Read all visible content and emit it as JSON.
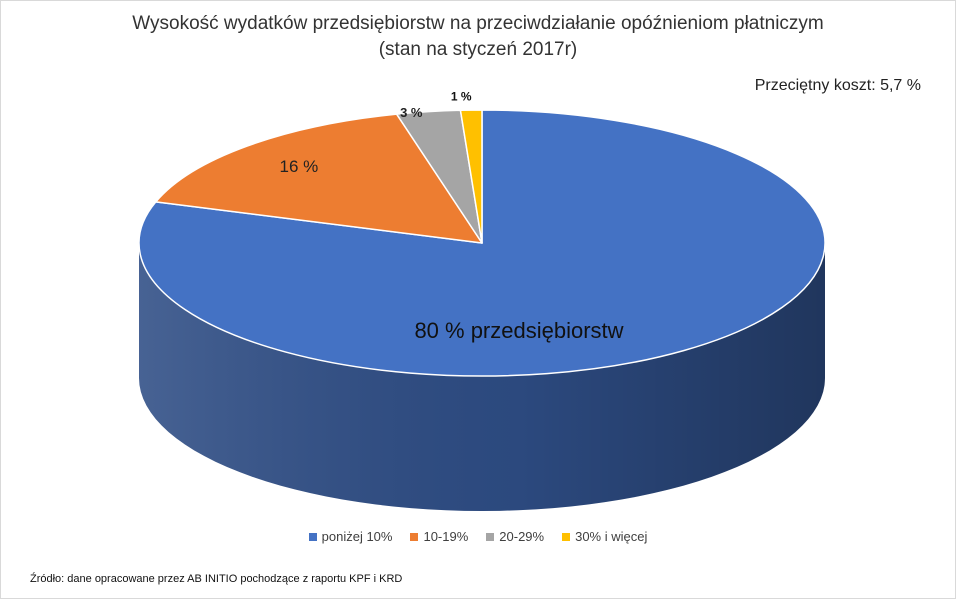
{
  "chart_data": {
    "type": "pie",
    "title": "Wysokość wydatków przedsiębiorstw  na przeciwdziałanie  opóźnieniom płatniczym",
    "subtitle": "(stan na styczeń 2017r)",
    "annotation": "Przeciętny koszt: 5,7 %",
    "categories": [
      "poniżej 10%",
      "10-19%",
      "20-29%",
      "30% i więcej"
    ],
    "values": [
      80,
      16,
      3,
      1
    ],
    "data_labels": [
      "80 % przedsiębiorstw",
      "16 %",
      "3 %",
      "1 %"
    ],
    "colors": [
      "#4472C4",
      "#ED7D31",
      "#A5A5A5",
      "#FFC000"
    ],
    "side_colors": [
      "#2E4D85",
      "#A0521C",
      "#6E6E6E",
      "#B88A00"
    ],
    "label_colors": [
      "#111111",
      "#222222",
      "#222222",
      "#111111"
    ],
    "label_bold": [
      false,
      false,
      true,
      true
    ],
    "legend_position": "bottom",
    "style": "3d"
  },
  "source_note": "Źródło:  dane opracowane przez AB  INITIO pochodzące z raportu KPF i KRD"
}
